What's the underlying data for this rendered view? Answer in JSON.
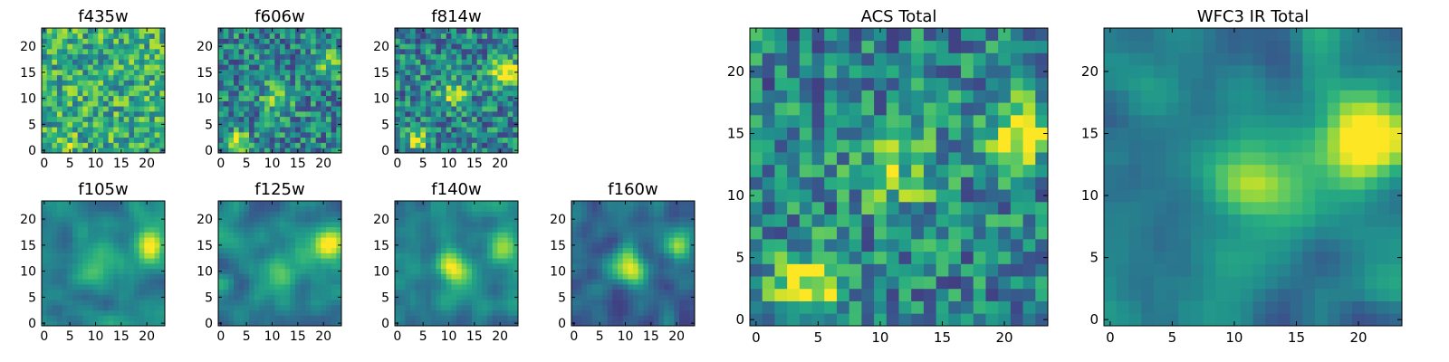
{
  "figure": {
    "description": "Grid of pixel cutout images (heatmaps) per HST filter plus stacked totals",
    "colormap": [
      "#440154",
      "#472c7a",
      "#3b518b",
      "#2c718e",
      "#21908d",
      "#27ad81",
      "#5cc863",
      "#aadc32",
      "#fde725"
    ],
    "frame_color": "#000000"
  },
  "chart_data": [
    {
      "type": "heatmap",
      "title": "f435w",
      "size": 24,
      "xticks": [
        0,
        5,
        10,
        15,
        20
      ],
      "yticks": [
        0,
        5,
        10,
        15,
        20
      ],
      "pattern": "noisy_bright",
      "seed": 11,
      "blobs": [
        {
          "x": 3.5,
          "y": 1.5,
          "amp": 0.25,
          "sigma": 1.5
        }
      ]
    },
    {
      "type": "heatmap",
      "title": "f606w",
      "size": 24,
      "xticks": [
        0,
        5,
        10,
        15,
        20
      ],
      "yticks": [
        0,
        5,
        10,
        15,
        20
      ],
      "pattern": "noisy",
      "seed": 23,
      "blobs": [
        {
          "x": 3.5,
          "y": 1.5,
          "amp": 0.55,
          "sigma": 1.4
        },
        {
          "x": 11,
          "y": 10,
          "amp": 0.35,
          "sigma": 2.2
        },
        {
          "x": 21.5,
          "y": 16.5,
          "amp": 0.35,
          "sigma": 1.8
        }
      ]
    },
    {
      "type": "heatmap",
      "title": "f814w",
      "size": 24,
      "xticks": [
        0,
        5,
        10,
        15,
        20
      ],
      "yticks": [
        0,
        5,
        10,
        15,
        20
      ],
      "pattern": "noisy",
      "seed": 37,
      "blobs": [
        {
          "x": 4,
          "y": 2,
          "amp": 0.4,
          "sigma": 1.5
        },
        {
          "x": 11,
          "y": 11,
          "amp": 0.4,
          "sigma": 1.8
        },
        {
          "x": 21,
          "y": 15,
          "amp": 0.6,
          "sigma": 2.0
        }
      ]
    },
    {
      "type": "heatmap",
      "title": "f105w",
      "size": 24,
      "xticks": [
        0,
        5,
        10,
        15,
        20
      ],
      "yticks": [
        0,
        5,
        10,
        15,
        20
      ],
      "pattern": "smooth",
      "seed": 41,
      "blobs": [
        {
          "x": 11,
          "y": 11,
          "amp": 0.35,
          "sigma": 2.4
        },
        {
          "x": 21,
          "y": 15,
          "amp": 0.6,
          "sigma": 2.2
        }
      ]
    },
    {
      "type": "heatmap",
      "title": "f125w",
      "size": 24,
      "xticks": [
        0,
        5,
        10,
        15,
        20
      ],
      "yticks": [
        0,
        5,
        10,
        15,
        20
      ],
      "pattern": "smooth",
      "seed": 53,
      "blobs": [
        {
          "x": 11,
          "y": 11,
          "amp": 0.3,
          "sigma": 2.4
        },
        {
          "x": 21,
          "y": 15,
          "amp": 0.65,
          "sigma": 2.2
        }
      ]
    },
    {
      "type": "heatmap",
      "title": "f140w",
      "size": 24,
      "xticks": [
        0,
        5,
        10,
        15,
        20
      ],
      "yticks": [
        0,
        5,
        10,
        15,
        20
      ],
      "pattern": "smooth",
      "seed": 67,
      "blobs": [
        {
          "x": 11,
          "y": 11,
          "amp": 0.55,
          "sigma": 2.2
        },
        {
          "x": 21,
          "y": 15,
          "amp": 0.55,
          "sigma": 2.2
        }
      ]
    },
    {
      "type": "heatmap",
      "title": "f160w",
      "size": 24,
      "xticks": [
        0,
        5,
        10,
        15,
        20
      ],
      "yticks": [
        0,
        5,
        10,
        15,
        20
      ],
      "pattern": "smooth_dark",
      "seed": 79,
      "blobs": [
        {
          "x": 11,
          "y": 11,
          "amp": 0.65,
          "sigma": 2.2
        },
        {
          "x": 21,
          "y": 15,
          "amp": 0.55,
          "sigma": 2.0
        }
      ]
    },
    {
      "type": "heatmap",
      "title": "ACS Total",
      "size": 24,
      "xticks": [
        0,
        5,
        10,
        15,
        20
      ],
      "yticks": [
        0,
        5,
        10,
        15,
        20
      ],
      "pattern": "noisy",
      "seed": 97,
      "blobs": [
        {
          "x": 4,
          "y": 2.5,
          "amp": 0.55,
          "sigma": 2.0
        },
        {
          "x": 11.5,
          "y": 12,
          "amp": 0.3,
          "sigma": 2.4
        },
        {
          "x": 21.5,
          "y": 15,
          "amp": 0.6,
          "sigma": 1.8
        }
      ]
    },
    {
      "type": "heatmap",
      "title": "WFC3 IR Total",
      "size": 24,
      "xticks": [
        0,
        5,
        10,
        15,
        20
      ],
      "yticks": [
        0,
        5,
        10,
        15,
        20
      ],
      "pattern": "smooth",
      "seed": 101,
      "blobs": [
        {
          "x": 11,
          "y": 11,
          "amp": 0.5,
          "sigma": 2.4
        },
        {
          "x": 21,
          "y": 15,
          "amp": 0.7,
          "sigma": 2.6
        }
      ]
    }
  ]
}
